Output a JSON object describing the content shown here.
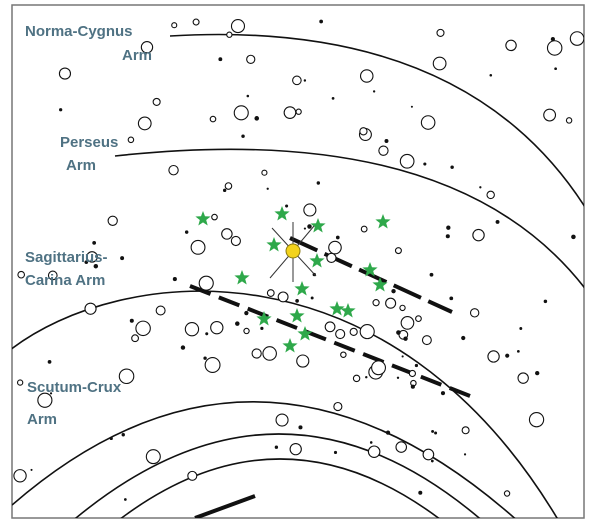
{
  "labels": [
    {
      "lines": [
        "Norma-Cygnus",
        "Arm"
      ]
    },
    {
      "lines": [
        "Perseus",
        "Arm"
      ]
    },
    {
      "lines": [
        "Sagittarius-",
        "Carina Arm"
      ]
    },
    {
      "lines": [
        "Scutum-Crux",
        "Arm"
      ]
    }
  ]
}
